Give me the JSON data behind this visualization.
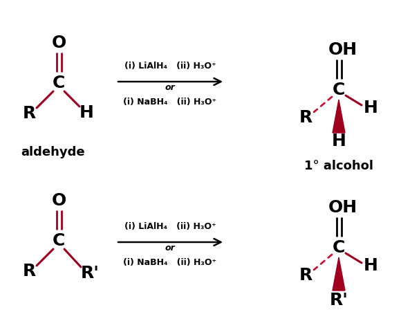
{
  "bg_color": "#ffffff",
  "black": "#000000",
  "red": "#a0001e",
  "dashed_red": "#cc1133",
  "fig_width": 5.8,
  "fig_height": 4.51,
  "top": {
    "aldehyde_label": "aldehyde",
    "product_label": "1° alcohol",
    "reagent_line1": "(i) LiAlH₄   (ii) H₃O⁺",
    "reagent_or": "or",
    "reagent_line2": "(i) NaBH₄   (ii) H₃O⁺"
  },
  "bottom": {
    "reagent_line1": "(i) LiAlH₄   (ii) H₃O⁺",
    "reagent_or": "or",
    "reagent_line2": "(i) NaBH₄   (ii) H₃O⁺"
  }
}
